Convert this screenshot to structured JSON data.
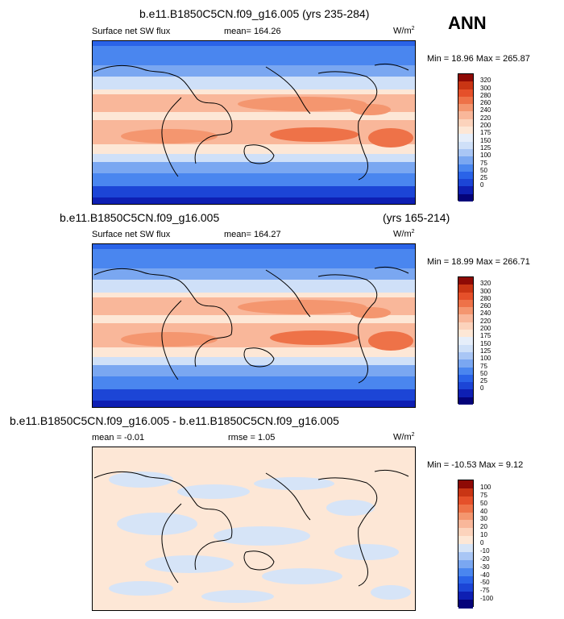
{
  "header": {
    "ann_label": "ANN"
  },
  "colors": {
    "abs_levels": [
      "#05037a",
      "#0e1fb3",
      "#1c45d6",
      "#2a63e8",
      "#4a86ef",
      "#7aa7f1",
      "#a9c6f5",
      "#cfe0f8",
      "#e6eefa",
      "#fde7d6",
      "#fcd3bc",
      "#f9b79a",
      "#f4966f",
      "#ee7248",
      "#e5502a",
      "#c93514",
      "#8e0a05"
    ],
    "diff_levels": [
      "#05037a",
      "#0e1fb3",
      "#1c45d6",
      "#2a63e8",
      "#4a86ef",
      "#7aa7f1",
      "#a9c6f5",
      "#d6e4f7",
      "#fde7d6",
      "#fcd3bc",
      "#f9b79a",
      "#f4966f",
      "#ee7248",
      "#e5502a",
      "#c93514",
      "#8e0a05"
    ]
  },
  "panels": [
    {
      "title": "b.e11.B1850C5CN.f09_g16.005 (yrs 235-284)",
      "title_right": "",
      "variable": "Surface net SW flux",
      "stat_label": "mean= 164.26",
      "stat2_label": "",
      "units": "W/m",
      "units_sup": "2",
      "min_max": "Min =  18.96 Max = 265.87"
    },
    {
      "title": "b.e11.B1850C5CN.f09_g16.005",
      "title_right": "(yrs 165-214)",
      "variable": "Surface net SW flux",
      "stat_label": "mean= 164.27",
      "stat2_label": "",
      "units": "W/m",
      "units_sup": "2",
      "min_max": "Min =  18.99 Max = 266.71"
    },
    {
      "title": "b.e11.B1850C5CN.f09_g16.005 - b.e11.B1850C5CN.f09_g16.005",
      "title_right": "",
      "variable": "",
      "stat_label": "mean =  -0.01",
      "stat2_label": "rmse =   1.05",
      "units": "W/m",
      "units_sup": "2",
      "min_max": "Min = -10.53 Max =   9.12"
    }
  ],
  "chart_data": [
    {
      "type": "heatmap",
      "title": "b.e11.B1850C5CN.f09_g16.005 (yrs 235-284)",
      "variable": "Surface net SW flux",
      "units": "W/m^2",
      "mean": 164.26,
      "min": 18.96,
      "max": 265.87,
      "colorbar_levels": [
        0,
        25,
        50,
        75,
        100,
        125,
        150,
        175,
        200,
        220,
        240,
        260,
        280,
        300,
        320
      ],
      "colorbar_labels": [
        "320",
        "300",
        "280",
        "260",
        "240",
        "220",
        "200",
        "175",
        "150",
        "125",
        "100",
        "75",
        "50",
        "25",
        "0"
      ]
    },
    {
      "type": "heatmap",
      "title": "b.e11.B1850C5CN.f09_g16.005 (yrs 165-214)",
      "variable": "Surface net SW flux",
      "units": "W/m^2",
      "mean": 164.27,
      "min": 18.99,
      "max": 266.71,
      "colorbar_levels": [
        0,
        25,
        50,
        75,
        100,
        125,
        150,
        175,
        200,
        220,
        240,
        260,
        280,
        300,
        320
      ],
      "colorbar_labels": [
        "320",
        "300",
        "280",
        "260",
        "240",
        "220",
        "200",
        "175",
        "150",
        "125",
        "100",
        "75",
        "50",
        "25",
        "0"
      ]
    },
    {
      "type": "heatmap",
      "title": "b.e11.B1850C5CN.f09_g16.005 - b.e11.B1850C5CN.f09_g16.005",
      "units": "W/m^2",
      "mean": -0.01,
      "rmse": 1.05,
      "min": -10.53,
      "max": 9.12,
      "colorbar_levels": [
        -100,
        -75,
        -50,
        -40,
        -30,
        -20,
        -10,
        0,
        10,
        20,
        30,
        40,
        50,
        75,
        100
      ],
      "colorbar_labels": [
        "100",
        "75",
        "50",
        "40",
        "30",
        "20",
        "10",
        "0",
        "-10",
        "-20",
        "-30",
        "-40",
        "-50",
        "-75",
        "-100"
      ]
    }
  ]
}
